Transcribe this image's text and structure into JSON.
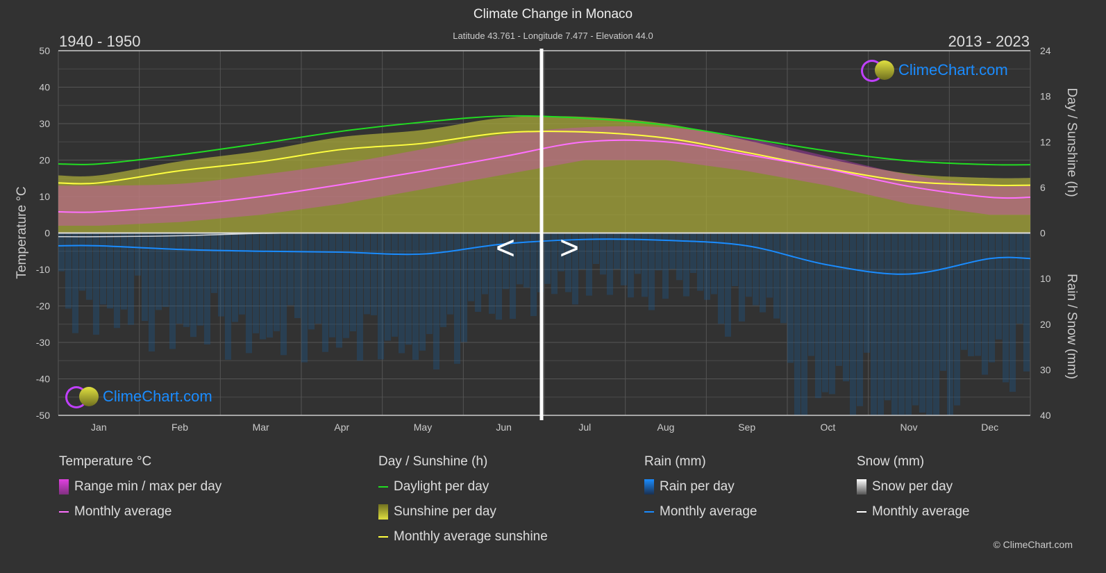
{
  "header": {
    "title": "Climate Change in Monaco",
    "subtitle": "Latitude 43.761 - Longitude 7.477 - Elevation 44.0",
    "period_left": "1940 - 1950",
    "period_right": "2013 - 2023",
    "nav_prev": "<",
    "nav_next": ">"
  },
  "logo_text": "ClimeChart.com",
  "copyright": "© ClimeChart.com",
  "colors": {
    "background": "#323232",
    "temp_range": "#e040e0",
    "temp_avg": "#ff70ff",
    "daylight": "#22dd22",
    "sunshine_fill": "#a8a83a",
    "sunshine_avg": "#ffff40",
    "rain": "#1a8cff",
    "snow": "#ffffff"
  },
  "chart_data": {
    "type": "area",
    "title": "Climate Change in Monaco",
    "categories": [
      "Jan",
      "Feb",
      "Mar",
      "Apr",
      "May",
      "Jun",
      "Jul",
      "Aug",
      "Sep",
      "Oct",
      "Nov",
      "Dec"
    ],
    "y_left": {
      "label": "Temperature °C",
      "lim": [
        -50,
        50
      ],
      "ticks": [
        50,
        40,
        30,
        20,
        10,
        0,
        -10,
        -20,
        -30,
        -40,
        -50
      ]
    },
    "y_right_top": {
      "label": "Day / Sunshine (h)",
      "lim": [
        0,
        24
      ],
      "ticks": [
        24,
        18,
        12,
        6,
        0
      ]
    },
    "y_right_bottom": {
      "label": "Rain / Snow (mm)",
      "lim": [
        0,
        40
      ],
      "ticks": [
        0,
        10,
        20,
        30,
        40
      ]
    },
    "grid": true,
    "series": [
      {
        "name": "Range min / max per day",
        "unit": "°C",
        "min": [
          2,
          3,
          5,
          8,
          12,
          16,
          20,
          20,
          17,
          13,
          8,
          5
        ],
        "max": [
          13,
          13.5,
          16,
          19,
          23,
          27,
          29,
          29,
          26,
          21,
          16,
          13
        ]
      },
      {
        "name": "Monthly average",
        "group": "Temperature °C",
        "values": [
          5.8,
          7.5,
          10,
          13.3,
          17,
          21,
          25,
          25,
          21.5,
          17.5,
          12.8,
          9.8
        ]
      },
      {
        "name": "Daylight per day",
        "unit": "h",
        "values": [
          9.1,
          10.3,
          11.8,
          13.4,
          14.6,
          15.4,
          15.1,
          14.2,
          12.5,
          10.8,
          9.5,
          9.0
        ]
      },
      {
        "name": "Monthly average sunshine",
        "unit": "h",
        "values": [
          6.6,
          8.2,
          9.4,
          11.0,
          11.8,
          13.2,
          13.3,
          12.5,
          10.6,
          8.5,
          6.8,
          6.3
        ]
      },
      {
        "name": "Monthly average",
        "group": "Rain (mm)",
        "values": [
          2.8,
          3.6,
          4.0,
          4.2,
          4.6,
          2.4,
          1.4,
          1.6,
          2.8,
          7.0,
          9.0,
          5.6
        ]
      },
      {
        "name": "Monthly average",
        "group": "Snow (mm)",
        "values": [
          0.8,
          0.6,
          0.1,
          0,
          0,
          0,
          0,
          0,
          0,
          0,
          0,
          0
        ]
      }
    ]
  },
  "legend": {
    "temp": {
      "title": "Temperature °C",
      "items": [
        "Range min / max per day",
        "Monthly average"
      ]
    },
    "sun": {
      "title": "Day / Sunshine (h)",
      "items": [
        "Daylight per day",
        "Sunshine per day",
        "Monthly average sunshine"
      ]
    },
    "rain": {
      "title": "Rain (mm)",
      "items": [
        "Rain per day",
        "Monthly average"
      ]
    },
    "snow": {
      "title": "Snow (mm)",
      "items": [
        "Snow per day",
        "Monthly average"
      ]
    }
  }
}
